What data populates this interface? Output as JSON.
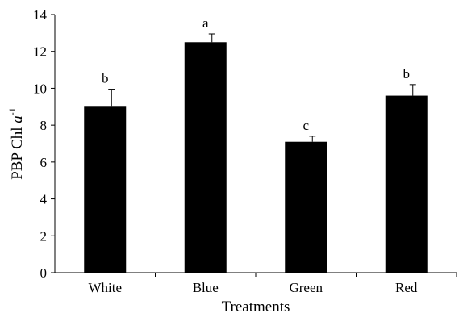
{
  "chart_data": {
    "type": "bar",
    "categories": [
      "White",
      "Blue",
      "Green",
      "Red"
    ],
    "values": [
      9.0,
      12.5,
      7.1,
      9.6
    ],
    "errors": [
      0.95,
      0.45,
      0.3,
      0.6
    ],
    "significance": [
      "b",
      "a",
      "c",
      "b"
    ],
    "xlabel": "Treatments",
    "ylabel": {
      "main": "PBP Chl ",
      "italic": "a",
      "sup": "-1"
    },
    "ylim": [
      0,
      14
    ],
    "yticks": [
      0,
      2,
      4,
      6,
      8,
      10,
      12,
      14
    ],
    "grid": false,
    "bar_color": "#000000"
  }
}
